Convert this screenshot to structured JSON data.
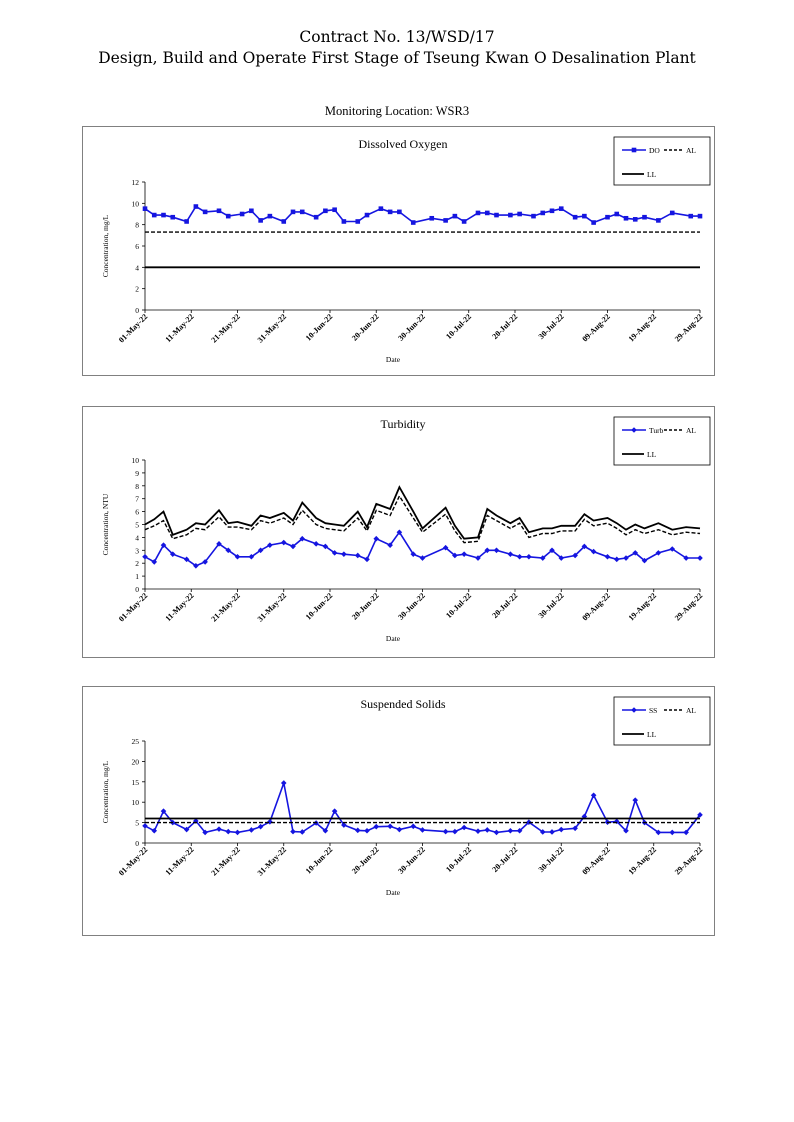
{
  "header": {
    "contract": "Contract No. 13/WSD/17",
    "project": "Design, Build and Operate First Stage of Tseung Kwan O Desalination Plant",
    "location": "Monitoring Location: WSR3"
  },
  "chart_data": [
    {
      "type": "line",
      "title": "Dissolved Oxygen",
      "ylabel": "Concentration, mg/L",
      "xlabel": "Date",
      "ylim": [
        0,
        12
      ],
      "yticks": [
        0,
        2,
        4,
        6,
        8,
        10,
        12
      ],
      "xticklabels": [
        "01-May-22",
        "11-May-22",
        "21-May-22",
        "31-May-22",
        "10-Jun-22",
        "20-Jun-22",
        "30-Jun-22",
        "10-Jul-22",
        "20-Jul-22",
        "30-Jul-22",
        "09-Aug-22",
        "19-Aug-22",
        "29-Aug-22"
      ],
      "legend": [
        "DO",
        "AL",
        "LL"
      ],
      "legend_position": "top-right",
      "colors": {
        "DO": "#1515e0",
        "AL": "#000000",
        "LL": "#000000"
      },
      "series": [
        {
          "name": "DO",
          "style": "line-square",
          "x": [
            0,
            2,
            4,
            6,
            9,
            11,
            13,
            16,
            18,
            21,
            23,
            25,
            27,
            30,
            32,
            34,
            37,
            39,
            41,
            43,
            46,
            48,
            51,
            53,
            55,
            58,
            62,
            65,
            67,
            69,
            72,
            74,
            76,
            79,
            81,
            84,
            86,
            88,
            90,
            93,
            95,
            97,
            100,
            102,
            104,
            106,
            108,
            111,
            114,
            118,
            120
          ],
          "y": [
            9.5,
            8.9,
            8.9,
            8.7,
            8.3,
            9.7,
            9.2,
            9.3,
            8.8,
            9.0,
            9.3,
            8.4,
            8.8,
            8.3,
            9.2,
            9.2,
            8.7,
            9.3,
            9.4,
            8.3,
            8.3,
            8.9,
            9.5,
            9.2,
            9.2,
            8.2,
            8.6,
            8.4,
            8.8,
            8.3,
            9.1,
            9.1,
            8.9,
            8.9,
            9.0,
            8.8,
            9.1,
            9.3,
            9.5,
            8.7,
            8.8,
            8.2,
            8.7,
            9.0,
            8.6,
            8.5,
            8.7,
            8.4,
            9.1,
            8.8,
            8.8
          ]
        },
        {
          "name": "AL",
          "style": "dashed",
          "x": [
            0,
            120
          ],
          "y": [
            7.3,
            7.3
          ]
        },
        {
          "name": "LL",
          "style": "solid",
          "x": [
            0,
            120
          ],
          "y": [
            4.0,
            4.0
          ]
        }
      ]
    },
    {
      "type": "line",
      "title": "Turbidity",
      "ylabel": "Concentration, NTU",
      "xlabel": "Date",
      "ylim": [
        0,
        10
      ],
      "yticks": [
        0,
        1,
        2,
        3,
        4,
        5,
        6,
        7,
        8,
        9,
        10
      ],
      "xticklabels": [
        "01-May-22",
        "11-May-22",
        "21-May-22",
        "31-May-22",
        "10-Jun-22",
        "20-Jun-22",
        "30-Jun-22",
        "10-Jul-22",
        "20-Jul-22",
        "30-Jul-22",
        "09-Aug-22",
        "19-Aug-22",
        "29-Aug-22"
      ],
      "legend": [
        "Turb",
        "AL",
        "LL"
      ],
      "legend_position": "top-right",
      "colors": {
        "Turb": "#1515e0",
        "AL": "#000000",
        "LL": "#000000"
      },
      "series": [
        {
          "name": "Turb",
          "style": "line-diamond",
          "x": [
            0,
            2,
            4,
            6,
            9,
            11,
            13,
            16,
            18,
            20,
            23,
            25,
            27,
            30,
            32,
            34,
            37,
            39,
            41,
            43,
            46,
            48,
            50,
            53,
            55,
            58,
            60,
            65,
            67,
            69,
            72,
            74,
            76,
            79,
            81,
            83,
            86,
            88,
            90,
            93,
            95,
            97,
            100,
            102,
            104,
            106,
            108,
            111,
            114,
            117,
            120
          ],
          "y": [
            2.5,
            2.1,
            3.4,
            2.7,
            2.3,
            1.8,
            2.1,
            3.5,
            3.0,
            2.5,
            2.5,
            3.0,
            3.4,
            3.6,
            3.3,
            3.9,
            3.5,
            3.3,
            2.8,
            2.7,
            2.6,
            2.3,
            3.9,
            3.4,
            4.4,
            2.7,
            2.4,
            3.2,
            2.6,
            2.7,
            2.4,
            3.0,
            3.0,
            2.7,
            2.5,
            2.5,
            2.4,
            3.0,
            2.4,
            2.6,
            3.3,
            2.9,
            2.5,
            2.3,
            2.4,
            2.8,
            2.2,
            2.8,
            3.1,
            2.4,
            2.4
          ]
        },
        {
          "name": "AL",
          "style": "dashed",
          "x": [
            0,
            2,
            4,
            6,
            9,
            11,
            13,
            16,
            18,
            20,
            23,
            25,
            27,
            30,
            32,
            34,
            37,
            39,
            41,
            43,
            46,
            48,
            50,
            53,
            55,
            58,
            60,
            65,
            67,
            69,
            72,
            74,
            76,
            79,
            81,
            83,
            86,
            88,
            90,
            93,
            95,
            97,
            100,
            102,
            104,
            106,
            108,
            111,
            114,
            117,
            120
          ],
          "y": [
            4.6,
            4.9,
            5.3,
            3.9,
            4.2,
            4.7,
            4.6,
            5.6,
            4.8,
            4.8,
            4.6,
            5.3,
            5.1,
            5.5,
            5.0,
            6.1,
            5.0,
            4.7,
            4.6,
            4.5,
            5.5,
            4.5,
            6.1,
            5.7,
            7.2,
            5.5,
            4.4,
            5.8,
            4.5,
            3.6,
            3.7,
            5.7,
            5.3,
            4.7,
            5.1,
            4.0,
            4.3,
            4.3,
            4.5,
            4.5,
            5.4,
            4.9,
            5.1,
            4.7,
            4.2,
            4.6,
            4.3,
            4.6,
            4.2,
            4.4,
            4.3
          ]
        },
        {
          "name": "LL",
          "style": "solid",
          "x": [
            0,
            2,
            4,
            6,
            9,
            11,
            13,
            16,
            18,
            20,
            23,
            25,
            27,
            30,
            32,
            34,
            37,
            39,
            41,
            43,
            46,
            48,
            50,
            53,
            55,
            58,
            60,
            65,
            67,
            69,
            72,
            74,
            76,
            79,
            81,
            83,
            86,
            88,
            90,
            93,
            95,
            97,
            100,
            102,
            104,
            106,
            108,
            111,
            114,
            117,
            120
          ],
          "y": [
            5.0,
            5.4,
            6.0,
            4.2,
            4.6,
            5.1,
            5.0,
            6.1,
            5.1,
            5.2,
            4.9,
            5.7,
            5.5,
            5.9,
            5.3,
            6.7,
            5.5,
            5.1,
            5.0,
            4.9,
            6.0,
            4.8,
            6.6,
            6.2,
            7.9,
            6.0,
            4.7,
            6.3,
            4.9,
            3.9,
            4.0,
            6.2,
            5.7,
            5.1,
            5.5,
            4.4,
            4.7,
            4.7,
            4.9,
            4.9,
            5.8,
            5.3,
            5.5,
            5.1,
            4.6,
            5.0,
            4.7,
            5.1,
            4.6,
            4.8,
            4.7
          ]
        }
      ]
    },
    {
      "type": "line",
      "title": "Suspended Solids",
      "ylabel": "Concentration, mg/L",
      "xlabel": "Date",
      "ylim": [
        0,
        25
      ],
      "yticks": [
        0,
        5,
        10,
        15,
        20,
        25
      ],
      "xticklabels": [
        "01-May-22",
        "11-May-22",
        "21-May-22",
        "31-May-22",
        "10-Jun-22",
        "20-Jun-22",
        "30-Jun-22",
        "10-Jul-22",
        "20-Jul-22",
        "30-Jul-22",
        "09-Aug-22",
        "19-Aug-22",
        "29-Aug-22"
      ],
      "legend": [
        "SS",
        "AL",
        "LL"
      ],
      "legend_position": "top-right",
      "colors": {
        "SS": "#1515e0",
        "AL": "#000000",
        "LL": "#000000"
      },
      "series": [
        {
          "name": "SS",
          "style": "line-diamond",
          "x": [
            0,
            2,
            4,
            6,
            9,
            11,
            13,
            16,
            18,
            20,
            23,
            25,
            27,
            30,
            32,
            34,
            37,
            39,
            41,
            43,
            46,
            48,
            50,
            53,
            55,
            58,
            60,
            65,
            67,
            69,
            72,
            74,
            76,
            79,
            81,
            83,
            86,
            88,
            90,
            93,
            95,
            97,
            100,
            102,
            104,
            106,
            108,
            111,
            114,
            117,
            120
          ],
          "y": [
            4.2,
            3.0,
            7.8,
            5.0,
            3.3,
            5.4,
            2.6,
            3.4,
            2.8,
            2.6,
            3.2,
            4.0,
            5.2,
            14.7,
            2.8,
            2.7,
            4.9,
            3.0,
            7.8,
            4.4,
            3.1,
            3.0,
            4.0,
            4.1,
            3.3,
            4.1,
            3.2,
            2.8,
            2.8,
            3.8,
            2.9,
            3.2,
            2.6,
            3.0,
            3.0,
            5.1,
            2.7,
            2.7,
            3.3,
            3.6,
            6.5,
            11.7,
            5.1,
            5.3,
            3.0,
            10.5,
            5.0,
            2.6,
            2.6,
            2.6,
            6.9
          ]
        },
        {
          "name": "AL",
          "style": "dashed",
          "x": [
            0,
            120
          ],
          "y": [
            5.0,
            5.0
          ]
        },
        {
          "name": "LL",
          "style": "solid",
          "x": [
            0,
            120
          ],
          "y": [
            6.0,
            6.0
          ]
        }
      ]
    }
  ]
}
